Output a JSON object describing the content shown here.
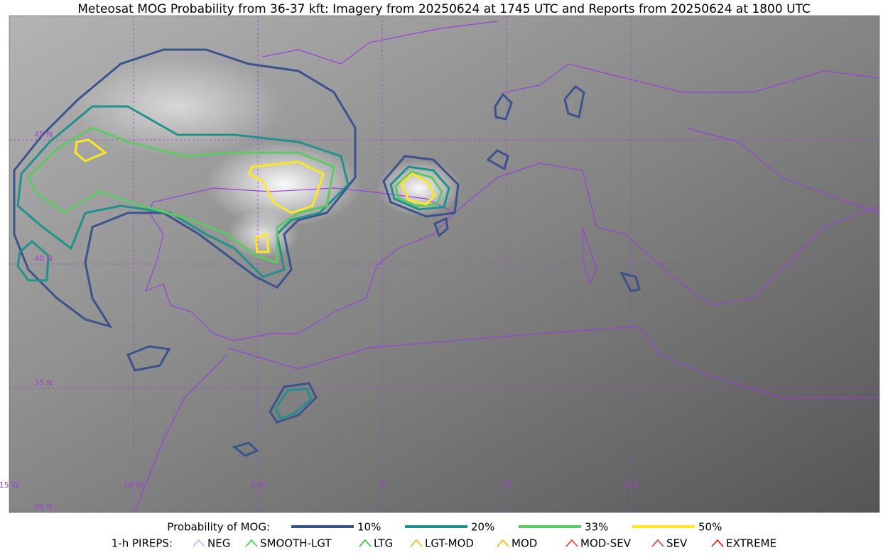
{
  "title": "Meteosat MOG Probability from 36-37 kft: Imagery from 20250624 at 1745 UTC and Reports from 20250624 at 1800 UTC",
  "grid_labels": {
    "lat": [
      "45 N",
      "40 N",
      "35 N",
      "30 N"
    ],
    "lon": [
      "15 W",
      "10 W",
      "5 W",
      "0",
      "5 E",
      "10 E"
    ]
  },
  "legend": {
    "probability_title": "Probability of MOG:",
    "probability_levels": [
      {
        "label": "10%",
        "color": "#3b528b"
      },
      {
        "label": "20%",
        "color": "#21918c"
      },
      {
        "label": "33%",
        "color": "#5ec962"
      },
      {
        "label": "50%",
        "color": "#fde725"
      }
    ],
    "pireps_title": "1-h PIREPS:",
    "pireps": [
      {
        "label": "NEG",
        "color": "#b9b9ff"
      },
      {
        "label": "SMOOTH-LGT",
        "color": "#33dd33"
      },
      {
        "label": "LTG",
        "color": "#22cc22"
      },
      {
        "label": "LGT-MOD",
        "color": "#f5b800"
      },
      {
        "label": "MOD",
        "color": "#f5b800"
      },
      {
        "label": "MOD-SEV",
        "color": "#ee3333"
      },
      {
        "label": "SEV",
        "color": "#ee3333"
      },
      {
        "label": "EXTREME",
        "color": "#ee1111"
      }
    ]
  }
}
